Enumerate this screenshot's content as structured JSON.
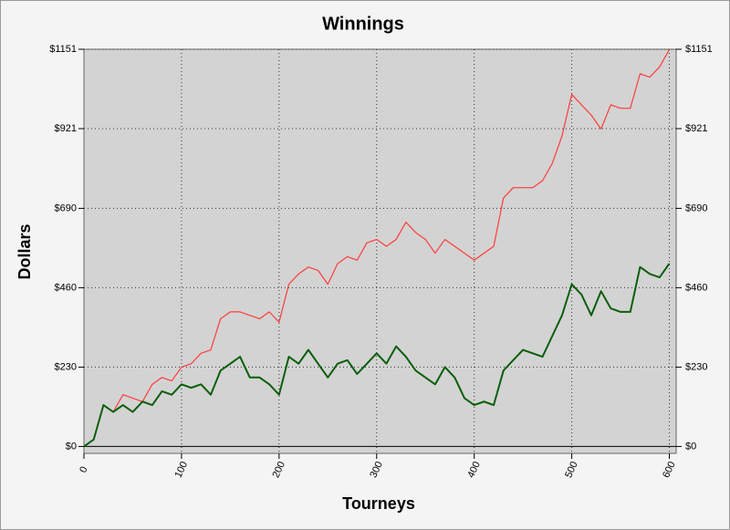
{
  "chart_data": {
    "type": "line",
    "title": "Winnings",
    "x_label": "Tourneys",
    "y_label": "Dollars",
    "x": [
      0,
      10,
      20,
      30,
      40,
      50,
      60,
      70,
      80,
      90,
      100,
      110,
      120,
      130,
      140,
      150,
      160,
      170,
      180,
      190,
      200,
      210,
      220,
      230,
      240,
      250,
      260,
      270,
      280,
      290,
      300,
      310,
      320,
      330,
      340,
      350,
      360,
      370,
      380,
      390,
      400,
      410,
      420,
      430,
      440,
      450,
      460,
      470,
      480,
      490,
      500,
      510,
      520,
      530,
      540,
      550,
      560,
      570,
      580,
      590,
      600
    ],
    "series": [
      {
        "color": "#ff3b3b",
        "values": [
          0,
          20,
          120,
          100,
          150,
          140,
          130,
          180,
          200,
          190,
          230,
          240,
          270,
          280,
          370,
          390,
          390,
          380,
          370,
          390,
          360,
          470,
          500,
          520,
          510,
          470,
          530,
          550,
          540,
          590,
          600,
          580,
          600,
          650,
          620,
          600,
          560,
          600,
          580,
          560,
          540,
          560,
          580,
          720,
          750,
          750,
          750,
          770,
          820,
          900,
          1020,
          990,
          960,
          920,
          990,
          980,
          980,
          1080,
          1070,
          1100,
          1150
        ]
      },
      {
        "color": "#0a5e0a",
        "values": [
          0,
          20,
          120,
          100,
          120,
          100,
          130,
          120,
          160,
          150,
          180,
          170,
          180,
          150,
          220,
          240,
          260,
          200,
          200,
          180,
          150,
          260,
          240,
          280,
          240,
          200,
          240,
          250,
          210,
          240,
          270,
          240,
          290,
          260,
          220,
          200,
          180,
          230,
          200,
          140,
          120,
          130,
          120,
          220,
          250,
          280,
          270,
          260,
          320,
          380,
          470,
          440,
          380,
          450,
          400,
          390,
          390,
          520,
          500,
          490,
          530
        ]
      }
    ],
    "xlim": [
      0,
      607
    ],
    "xticks": [
      0,
      100,
      200,
      300,
      400,
      500,
      600
    ],
    "ylim": [
      -20,
      1151
    ],
    "yticks": [
      {
        "value": 0,
        "label": "$0"
      },
      {
        "value": 230,
        "label": "$230"
      },
      {
        "value": 460,
        "label": "$460"
      },
      {
        "value": 690,
        "label": "$690"
      },
      {
        "value": 921,
        "label": "$921"
      },
      {
        "value": 1151,
        "label": "$1151"
      }
    ],
    "grid": true
  }
}
